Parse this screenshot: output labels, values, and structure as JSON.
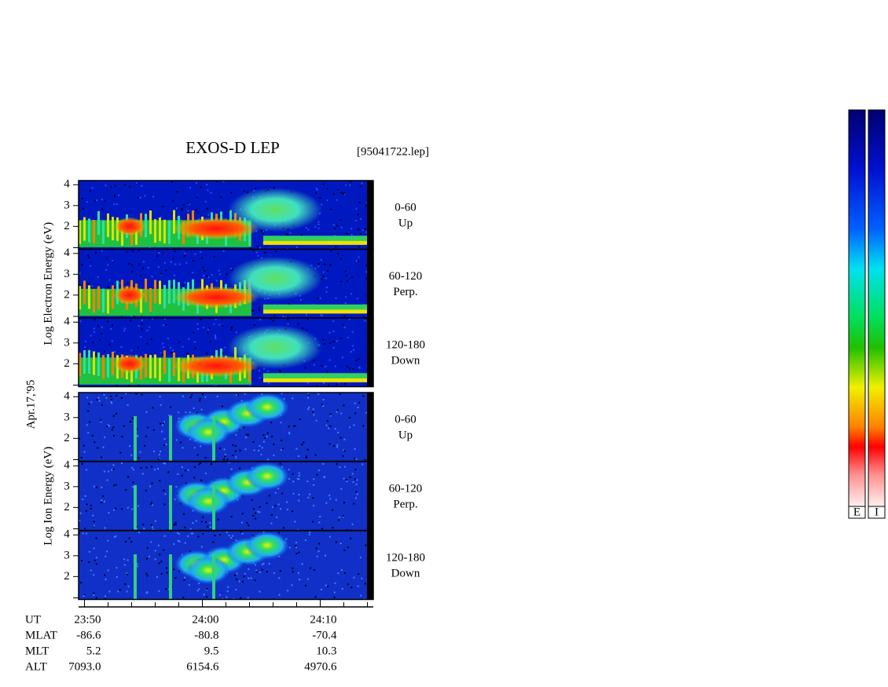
{
  "title": "EXOS-D LEP",
  "file": "[95041722.lep]",
  "date": "Apr.17,'95",
  "groups": [
    {
      "axis_label": "Log Electron Energy (eV)",
      "panels": [
        {
          "angle": "0-60",
          "dir": "Up"
        },
        {
          "angle": "60-120",
          "dir": "Perp."
        },
        {
          "angle": "120-180",
          "dir": "Down"
        }
      ]
    },
    {
      "axis_label": "Log Ion Energy (eV)",
      "panels": [
        {
          "angle": "0-60",
          "dir": "Up"
        },
        {
          "angle": "60-120",
          "dir": "Perp."
        },
        {
          "angle": "120-180",
          "dir": "Down"
        }
      ]
    }
  ],
  "ylim": [
    0.9,
    4.2
  ],
  "yticks": [
    2,
    3,
    4
  ],
  "time": {
    "label": "UT",
    "xlim": [
      1429.5,
      1454.5
    ],
    "xticks": [
      {
        "value": 1430,
        "label": "23:50"
      },
      {
        "value": 1440,
        "label": "24:00"
      },
      {
        "value": 1450,
        "label": "24:10"
      }
    ],
    "minor_ticks": [
      1432,
      1434,
      1436,
      1438,
      1442,
      1444,
      1446,
      1448,
      1452,
      1454
    ]
  },
  "ephemeris": [
    {
      "label": "MLAT",
      "values": [
        "-86.6",
        "-80.8",
        "-70.4"
      ]
    },
    {
      "label": "MLT",
      "values": [
        "5.2",
        "9.5",
        "10.3"
      ]
    },
    {
      "label": "ALT",
      "values": [
        "7093.0",
        "6154.6",
        "4970.6"
      ]
    }
  ],
  "colorbars": [
    "E",
    "I"
  ]
}
